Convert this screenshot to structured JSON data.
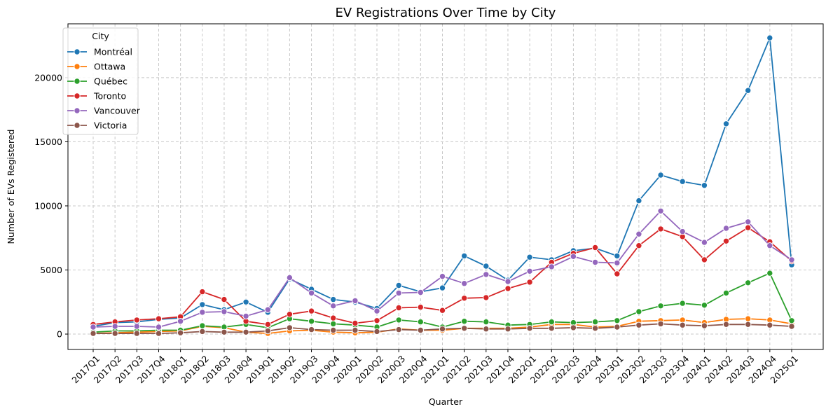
{
  "chart_data": {
    "type": "line",
    "title": "EV Registrations Over Time by City",
    "xlabel": "Quarter",
    "ylabel": "Number of EVs Registered",
    "categories": [
      "2017Q1",
      "2017Q2",
      "2017Q3",
      "2017Q4",
      "2018Q1",
      "2018Q2",
      "2018Q3",
      "2018Q4",
      "2019Q1",
      "2019Q2",
      "2019Q3",
      "2019Q4",
      "2020Q1",
      "2020Q2",
      "2020Q3",
      "2020Q4",
      "2021Q1",
      "2021Q2",
      "2021Q3",
      "2021Q4",
      "2022Q1",
      "2022Q2",
      "2022Q3",
      "2022Q4",
      "2023Q1",
      "2023Q2",
      "2023Q3",
      "2023Q4",
      "2024Q1",
      "2024Q2",
      "2024Q3",
      "2024Q4",
      "2025Q1"
    ],
    "yticks": [
      0,
      5000,
      10000,
      15000,
      20000
    ],
    "ylim": [
      -1200,
      24200
    ],
    "grid": true,
    "legend": {
      "title": "City",
      "placement": "top-left"
    },
    "series": [
      {
        "name": "Montréal",
        "color": "#1f77b4",
        "values": [
          600,
          900,
          950,
          1150,
          1250,
          2300,
          1900,
          2500,
          1700,
          4300,
          3500,
          2700,
          2500,
          2000,
          3800,
          3300,
          3600,
          6100,
          5300,
          4200,
          6000,
          5800,
          6500,
          6700,
          6100,
          10400,
          12400,
          11900,
          11600,
          16400,
          19000,
          23100,
          5400
        ]
      },
      {
        "name": "Ottawa",
        "color": "#ff7f0e",
        "values": [
          50,
          100,
          150,
          200,
          250,
          600,
          500,
          150,
          50,
          250,
          300,
          150,
          100,
          150,
          400,
          300,
          300,
          450,
          450,
          450,
          550,
          750,
          750,
          550,
          600,
          1000,
          1050,
          1100,
          900,
          1150,
          1200,
          1100,
          800
        ]
      },
      {
        "name": "Québec",
        "color": "#2ca02c",
        "values": [
          150,
          250,
          250,
          300,
          300,
          650,
          550,
          750,
          500,
          1200,
          1000,
          800,
          700,
          550,
          1100,
          950,
          550,
          1000,
          950,
          700,
          750,
          950,
          900,
          950,
          1050,
          1750,
          2200,
          2400,
          2250,
          3200,
          4000,
          4750,
          1050
        ]
      },
      {
        "name": "Toronto",
        "color": "#d62728",
        "values": [
          750,
          950,
          1100,
          1200,
          1350,
          3300,
          2700,
          1000,
          750,
          1550,
          1800,
          1250,
          850,
          1050,
          2050,
          2100,
          1850,
          2800,
          2850,
          3550,
          4050,
          5600,
          6300,
          6750,
          4700,
          6900,
          8200,
          7600,
          5800,
          7250,
          8300,
          7200,
          5700
        ]
      },
      {
        "name": "Vancouver",
        "color": "#9467bd",
        "values": [
          550,
          600,
          600,
          550,
          1000,
          1700,
          1750,
          1400,
          1900,
          4400,
          3200,
          2200,
          2600,
          1800,
          3200,
          3250,
          4500,
          3950,
          4650,
          4100,
          4900,
          5250,
          6050,
          5600,
          5550,
          7800,
          9600,
          8000,
          7150,
          8250,
          8750,
          6900,
          5800
        ]
      },
      {
        "name": "Victoria",
        "color": "#8c564b",
        "values": [
          50,
          50,
          50,
          50,
          100,
          200,
          150,
          150,
          250,
          500,
          350,
          300,
          300,
          200,
          350,
          300,
          400,
          450,
          400,
          400,
          450,
          450,
          500,
          450,
          550,
          700,
          800,
          700,
          650,
          750,
          750,
          700,
          600
        ]
      }
    ]
  }
}
